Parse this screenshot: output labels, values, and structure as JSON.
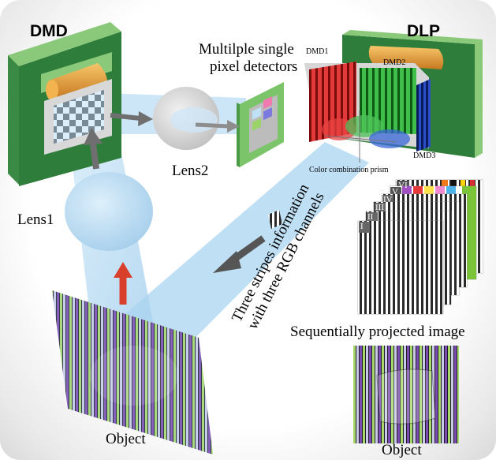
{
  "labels": {
    "dmd": "DMD",
    "dlp": "DLP",
    "detectors_line1": "Multilple single",
    "detectors_line2": "pixel detectors",
    "lens1": "Lens1",
    "lens2": "Lens2",
    "dmd1": "DMD1",
    "dmd2": "DMD2",
    "dmd3": "DMD3",
    "prism": "Color combination prism",
    "stripes_line1": "Three stripes information",
    "stripes_line2": "with three RGB channels",
    "sequential": "Sequentially projected image",
    "object_left": "Object",
    "object_right": "Object"
  },
  "stack_labels": [
    "I",
    "II",
    "III",
    "IV",
    "V",
    "VI"
  ],
  "colors": {
    "green_board": "#2e7d3a",
    "board_edge": "#8bc97a",
    "gold": "#e8a33d",
    "beam": "#a9d4f0",
    "arrow_gray": "#6f6f6f",
    "arrow_red": "#d9402b",
    "stripe_purple": "#6a3d9a",
    "stripe_green": "#8fcf4a",
    "stripe_dark": "#1e1e28"
  }
}
